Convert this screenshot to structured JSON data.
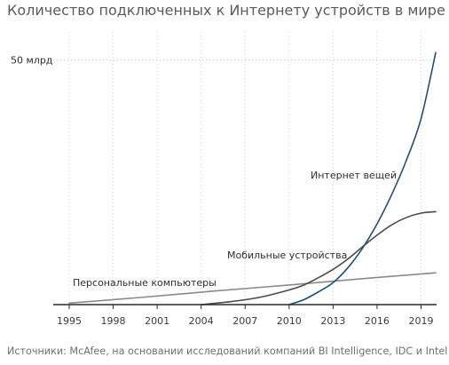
{
  "chart_data": {
    "type": "line",
    "title": "Количество подключенных к Интернету устройств в мире",
    "source": "Источники: McAfee, на основании исследований компаний BI Intelligence, IDC и Intel",
    "xlim": [
      1995,
      2020
    ],
    "ylim": [
      0,
      55
    ],
    "x_ticks": [
      1995,
      1998,
      2001,
      2004,
      2007,
      2010,
      2013,
      2016,
      2019
    ],
    "x_tick_labels": [
      "1995",
      "1998",
      "2001",
      "2004",
      "2007",
      "2010",
      "2013",
      "2016",
      "2019"
    ],
    "y_gridline": 50,
    "y_gridline_label": "50 млрд",
    "grid": "dotted",
    "series": [
      {
        "name": "Персональные компьютеры",
        "color": "#8a8a8a",
        "x": [
          1995,
          2000,
          2005,
          2010,
          2015,
          2020
        ],
        "y": [
          0.3,
          1.5,
          2.8,
          4.0,
          5.3,
          6.5
        ]
      },
      {
        "name": "Мобильные устройства",
        "color": "#4a4a4a",
        "x": [
          2004,
          2006,
          2008,
          2010,
          2011,
          2012,
          2013,
          2014,
          2015,
          2016,
          2017,
          2018,
          2019,
          2020
        ],
        "y": [
          0,
          0.6,
          1.5,
          3.0,
          4.0,
          5.5,
          7.2,
          9.3,
          11.8,
          14.2,
          16.3,
          17.8,
          18.7,
          19.0
        ]
      },
      {
        "name": "Интернет вещей",
        "color": "#1f4e79",
        "x": [
          2010,
          2011,
          2012,
          2013,
          2014,
          2015,
          2016,
          2017,
          2018,
          2019,
          2020
        ],
        "y": [
          0,
          1.0,
          2.6,
          4.5,
          7.5,
          11.5,
          16.5,
          22.5,
          29.5,
          38.0,
          51.5
        ]
      }
    ]
  }
}
